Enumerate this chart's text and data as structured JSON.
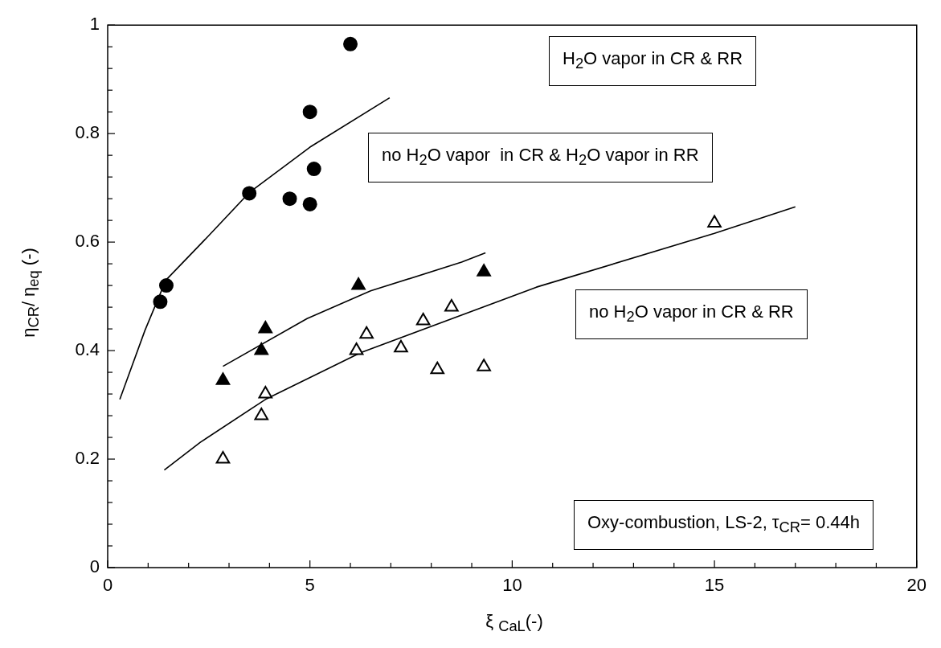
{
  "chart_data": {
    "type": "scatter",
    "xlabel": "ξ $_{CaL}$(-)",
    "ylabel": "η$_{CR}$/ η$_{eq}$ (-)",
    "xlim": [
      0,
      20
    ],
    "ylim": [
      0,
      1
    ],
    "xticks": [
      0,
      {
        "value": 1,
        "label": null
      },
      {
        "value": 2,
        "label": null
      },
      {
        "value": 3,
        "label": null
      },
      {
        "value": 4,
        "label": null
      },
      5,
      {
        "value": 6,
        "label": null
      },
      {
        "value": 7,
        "label": null
      },
      {
        "value": 8,
        "label": null
      },
      {
        "value": 9,
        "label": null
      },
      10,
      {
        "value": 11,
        "label": null
      },
      {
        "value": 12,
        "label": null
      },
      {
        "value": 13,
        "label": null
      },
      {
        "value": 14,
        "label": null
      },
      15,
      {
        "value": 16,
        "label": null
      },
      {
        "value": 17,
        "label": null
      },
      {
        "value": 18,
        "label": null
      },
      {
        "value": 19,
        "label": null
      },
      20
    ],
    "yticks": [
      0,
      {
        "value": 0.04,
        "label": null
      },
      {
        "value": 0.08,
        "label": null
      },
      {
        "value": 0.12,
        "label": null
      },
      {
        "value": 0.16,
        "label": null
      },
      0.2,
      {
        "value": 0.24,
        "label": null
      },
      {
        "value": 0.28,
        "label": null
      },
      {
        "value": 0.32,
        "label": null
      },
      {
        "value": 0.36,
        "label": null
      },
      0.4,
      {
        "value": 0.44,
        "label": null
      },
      {
        "value": 0.48,
        "label": null
      },
      {
        "value": 0.52,
        "label": null
      },
      {
        "value": 0.56,
        "label": null
      },
      0.6,
      {
        "value": 0.64,
        "label": null
      },
      {
        "value": 0.68,
        "label": null
      },
      {
        "value": 0.72,
        "label": null
      },
      {
        "value": 0.76,
        "label": null
      },
      0.8,
      {
        "value": 0.84,
        "label": null
      },
      {
        "value": 0.88,
        "label": null
      },
      {
        "value": 0.92,
        "label": null
      },
      {
        "value": 0.96,
        "label": null
      },
      1
    ],
    "grid": false,
    "legend": false,
    "series": [
      {
        "marker": "circle",
        "color": "#000000",
        "x": [
          1.3,
          1.45,
          3.5,
          4.5,
          5.0,
          5.0,
          5.1,
          6.0
        ],
        "values": [
          0.49,
          0.52,
          0.69,
          0.68,
          0.67,
          0.84,
          0.735,
          0.965
        ]
      },
      {
        "marker": "triangle",
        "color": "#000000",
        "x": [
          2.85,
          3.8,
          3.9,
          6.2,
          9.3
        ],
        "values": [
          0.345,
          0.4,
          0.44,
          0.52,
          0.545
        ]
      },
      {
        "marker": "triangle",
        "color": "#ffffff",
        "x": [
          2.85,
          3.8,
          3.9,
          6.15,
          9.3,
          6.4,
          7.25,
          7.8,
          8.15,
          8.5,
          15.0
        ],
        "values": [
          0.2,
          0.28,
          0.32,
          0.4,
          0.37,
          0.43,
          0.405,
          0.455,
          0.365,
          0.48,
          0.635
        ]
      },
      {
        "type": "line",
        "color": "#000000",
        "x": [
          0.3,
          0.92,
          1.44,
          2.5,
          3.51,
          5.0,
          6.97
        ],
        "values": [
          0.31,
          0.437,
          0.53,
          0.612,
          0.692,
          0.775,
          0.866
        ]
      },
      {
        "type": "line",
        "color": "#000000",
        "x": [
          2.85,
          4.93,
          6.5,
          8.75,
          9.34
        ],
        "values": [
          0.371,
          0.459,
          0.51,
          0.563,
          0.58
        ]
      },
      {
        "type": "line",
        "color": "#000000",
        "x": [
          1.4,
          2.29,
          3.9,
          6.25,
          10.6,
          15,
          17
        ],
        "values": [
          0.18,
          0.231,
          0.31,
          0.396,
          0.517,
          0.616,
          0.665
        ]
      }
    ],
    "annotations": [
      "H$_{2}$O vapor in CR & RR",
      "no H$_{2}$O vapor  in CR & H$_{2}$O vapor in RR",
      "no H$_{2}$O vapor in CR & RR",
      "Oxy-combustion, LS-2, τ$_{CR}$= 0.44h"
    ]
  }
}
